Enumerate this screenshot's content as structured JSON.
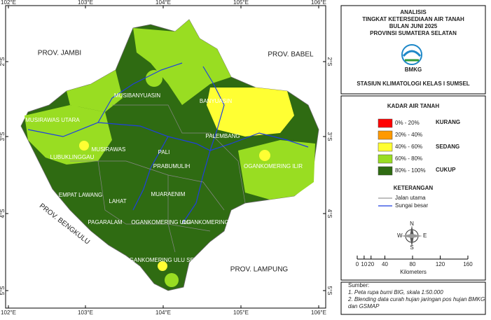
{
  "header": {
    "title_lines": [
      "ANALISIS",
      "TINGKAT KETERSEDIAAN AIR TANAH",
      "BULAN JUNI 2025",
      "PROVINSI SUMATERA SELATAN"
    ],
    "logo": "BMKG",
    "station": "STASIUN KLIMATOLOGI KELAS I SUMSEL"
  },
  "legend": {
    "title": "KADAR AIR TANAH",
    "items": [
      {
        "label": "0% - 20%",
        "color": "#ff0000"
      },
      {
        "label": "20% - 40%",
        "color": "#ff9900"
      },
      {
        "label": "40% - 60%",
        "color": "#ffff33"
      },
      {
        "label": "60% - 80%",
        "color": "#99dd22"
      },
      {
        "label": "80% - 100%",
        "color": "#2f6b12"
      }
    ],
    "classes": [
      "KURANG",
      "SEDANG",
      "CUKUP"
    ]
  },
  "notes": {
    "title": "KETERANGAN",
    "items": [
      "Jalan utama",
      "Sungai besar"
    ]
  },
  "compass": {
    "n": "N",
    "s": "S",
    "e": "E",
    "w": "W"
  },
  "scale": {
    "ticks": [
      0,
      10,
      20,
      40,
      80,
      120,
      160
    ],
    "unit": "Kilometers"
  },
  "sources": {
    "title": "Sumber:",
    "lines": [
      "1. Peta rupa bumi BIG, skala 1:50.000",
      "2. Blending data curah hujan jaringan pos hujan BMKG",
      "dan GSMAP"
    ]
  },
  "grid": {
    "lon": [
      "102°E",
      "103°E",
      "104°E",
      "105°E",
      "106°E"
    ],
    "lat": [
      "2°S",
      "3°S",
      "4°S",
      "5°S"
    ]
  },
  "map_labels": {
    "provinces": [
      "PROV. JAMBI",
      "PROV. BABEL",
      "PROV. BENGKULU",
      "PROV. LAMPUNG"
    ],
    "regencies": [
      "MUSIBANYUASIN",
      "BANYUASIN",
      "MUSIRAWAS UTARA",
      "MUSIRAWAS",
      "LUBUKLINGGAU",
      "PALI",
      "PRABUMULIH",
      "MUARAENIM",
      "OGANKOMERING ILIR",
      "EMPAT LAWANG",
      "LAHAT",
      "PAGARALAM",
      "OGANKOMERING ULU",
      "OGANKOMERING ULU TIMUR",
      "OGANKOMERING ULU SELATAN",
      "PALEMBANG"
    ]
  }
}
